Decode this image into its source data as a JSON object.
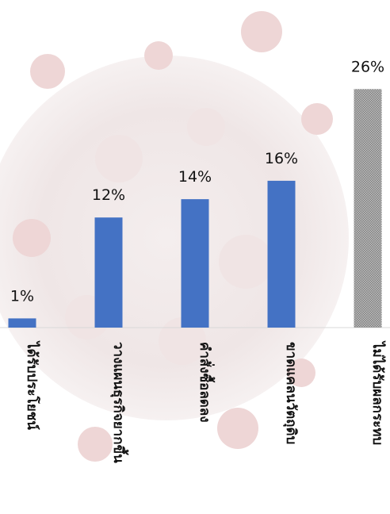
{
  "chart_data": {
    "type": "bar",
    "categories": [
      "ได้รับประโยชน์",
      "วางแผนธุรกิจยากขึ้น",
      "คำสั่งซื้อลดลง",
      "ขาดแคลนวัตถุดิบ",
      "ไม่ได้รับผลกระทบ"
    ],
    "values": [
      1,
      12,
      14,
      16,
      26
    ],
    "value_labels": [
      "1%",
      "12%",
      "14%",
      "16%",
      "26%"
    ],
    "ylim": [
      0,
      30
    ],
    "grid": false,
    "legend": "none",
    "colors": {
      "bar": "#4472c4",
      "highlight_bar": "#bfbfbf",
      "highlight_pattern": "#7f7f7f",
      "axis": "#d9d9d9"
    }
  }
}
